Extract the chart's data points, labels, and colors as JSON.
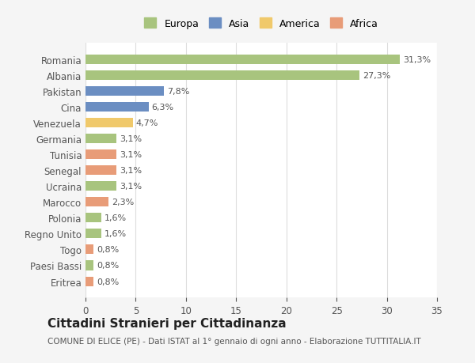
{
  "categories": [
    "Romania",
    "Albania",
    "Pakistan",
    "Cina",
    "Venezuela",
    "Germania",
    "Tunisia",
    "Senegal",
    "Ucraina",
    "Marocco",
    "Polonia",
    "Regno Unito",
    "Togo",
    "Paesi Bassi",
    "Eritrea"
  ],
  "values": [
    31.3,
    27.3,
    7.8,
    6.3,
    4.7,
    3.1,
    3.1,
    3.1,
    3.1,
    2.3,
    1.6,
    1.6,
    0.8,
    0.8,
    0.8
  ],
  "labels": [
    "31,3%",
    "27,3%",
    "7,8%",
    "6,3%",
    "4,7%",
    "3,1%",
    "3,1%",
    "3,1%",
    "3,1%",
    "2,3%",
    "1,6%",
    "1,6%",
    "0,8%",
    "0,8%",
    "0,8%"
  ],
  "colors": [
    "#a8c47e",
    "#a8c47e",
    "#6b8ec2",
    "#6b8ec2",
    "#f0c96b",
    "#a8c47e",
    "#e89c78",
    "#e89c78",
    "#a8c47e",
    "#e89c78",
    "#a8c47e",
    "#a8c47e",
    "#e89c78",
    "#a8c47e",
    "#e89c78"
  ],
  "legend_labels": [
    "Europa",
    "Asia",
    "America",
    "Africa"
  ],
  "legend_colors": [
    "#a8c47e",
    "#6b8ec2",
    "#f0c96b",
    "#e89c78"
  ],
  "xlim": [
    0,
    35
  ],
  "xticks": [
    0,
    5,
    10,
    15,
    20,
    25,
    30,
    35
  ],
  "title": "Cittadini Stranieri per Cittadinanza",
  "subtitle": "COMUNE DI ELICE (PE) - Dati ISTAT al 1° gennaio di ogni anno - Elaborazione TUTTITALIA.IT",
  "background_color": "#f5f5f5",
  "plot_bg_color": "#ffffff"
}
